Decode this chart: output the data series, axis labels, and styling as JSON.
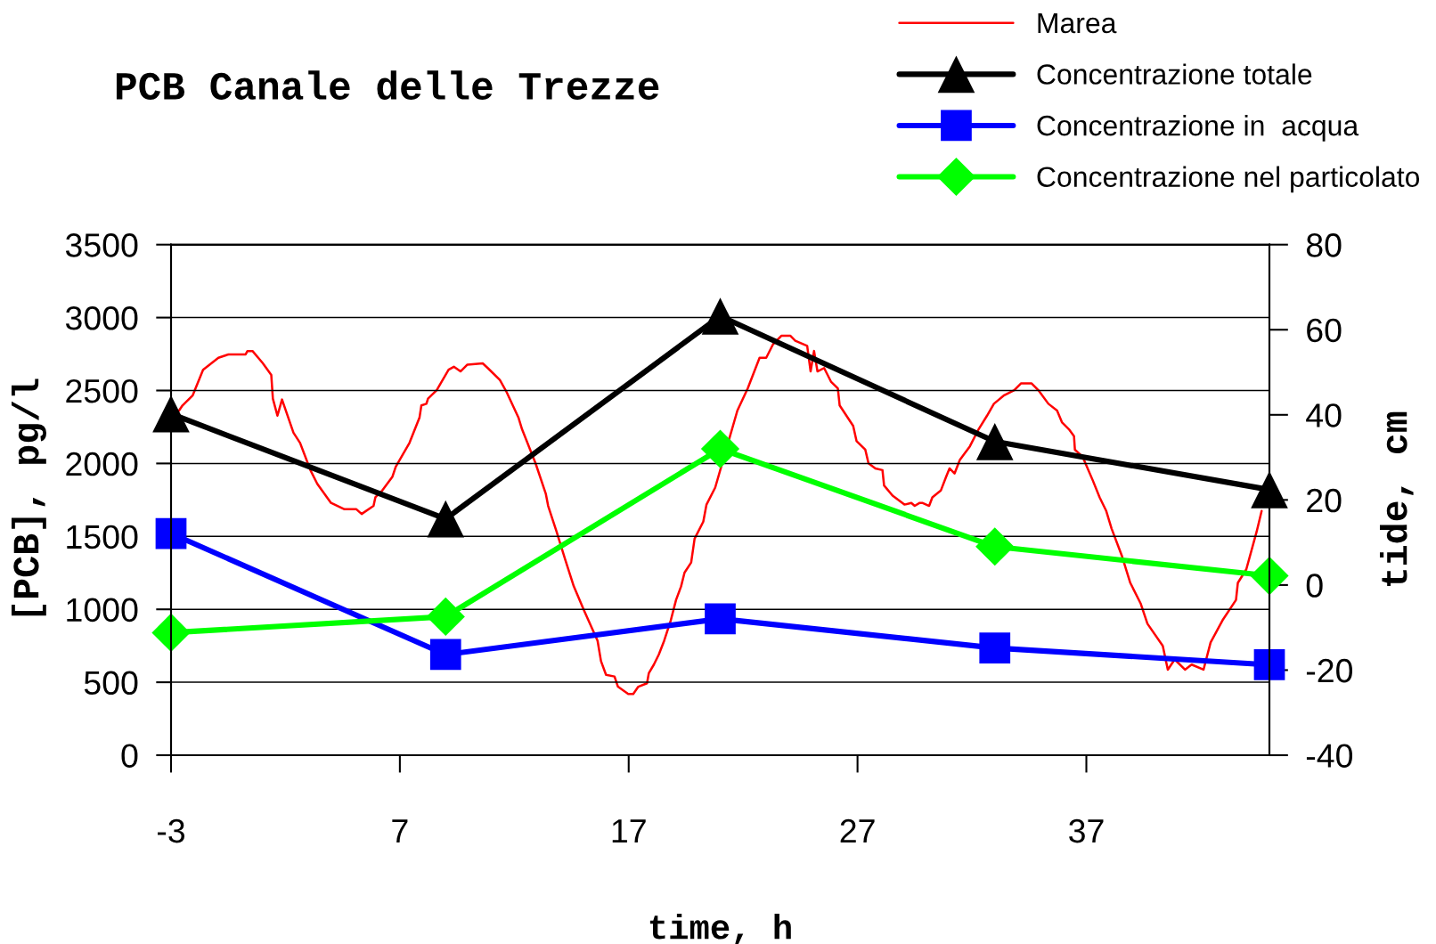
{
  "chart_data": {
    "type": "line",
    "title": "PCB Canale delle Trezze",
    "xlabel": "time, h",
    "ylabel": "[PCB], pg/l",
    "y2label": "tide, cm",
    "x": [
      -3,
      9,
      21,
      33,
      45
    ],
    "xlim": [
      -3,
      45
    ],
    "xticks": [
      -3,
      7,
      17,
      27,
      37
    ],
    "ylim": [
      0,
      3500
    ],
    "yticks": [
      0,
      500,
      1000,
      1500,
      2000,
      2500,
      3000,
      3500
    ],
    "y2lim": [
      -40,
      80
    ],
    "y2ticks": [
      -40,
      -20,
      0,
      20,
      40,
      60,
      80
    ],
    "grid": "y",
    "legend": "top right",
    "series": [
      {
        "name": "Marea",
        "color": "#ff0000",
        "axis": "y2",
        "marker": "none",
        "x": [
          -2.65,
          -2.5,
          -2.05,
          -1.6,
          -0.93,
          -0.49,
          0.26,
          0.34,
          0.56,
          1.0,
          1.38,
          1.45,
          1.65,
          1.85,
          2.35,
          2.64,
          3.09,
          3.39,
          3.99,
          4.58,
          5.1,
          5.33,
          5.85,
          5.93,
          6.23,
          6.67,
          6.82,
          7.42,
          7.86,
          7.94,
          8.16,
          8.23,
          8.61,
          9.13,
          9.36,
          9.65,
          9.95,
          10.62,
          10.84,
          11.37,
          11.66,
          12.18,
          12.34,
          12.93,
          13.38,
          13.48,
          13.85,
          14.22,
          14.6,
          15.04,
          15.64,
          15.79,
          16.01,
          16.38,
          16.53,
          16.98,
          17.2,
          17.42,
          17.8,
          17.88,
          18.1,
          18.32,
          18.55,
          18.84,
          19.07,
          19.29,
          19.44,
          19.73,
          19.88,
          20.26,
          20.4,
          20.78,
          21.75,
          22.2,
          22.49,
          22.72,
          23.01,
          23.31,
          23.68,
          24.06,
          24.28,
          24.8,
          24.95,
          25.1,
          25.25,
          25.54,
          25.84,
          26.14,
          26.22,
          26.81,
          26.96,
          27.34,
          27.48,
          27.78,
          28.09,
          28.16,
          28.53,
          29.05,
          29.35,
          29.5,
          29.72,
          29.83,
          30.13,
          30.27,
          30.64,
          30.87,
          31.02,
          31.24,
          31.47,
          31.91,
          32.29,
          32.66,
          32.96,
          33.41,
          33.85,
          34.15,
          34.6,
          34.9,
          35.34,
          35.72,
          35.94,
          36.24,
          36.46,
          36.5,
          36.83,
          37.28,
          37.58,
          37.87,
          38.1,
          38.55,
          38.92,
          39.37,
          39.67,
          40.34,
          40.56,
          40.86,
          41.31,
          41.6,
          42.12,
          42.43,
          42.95,
          43.54,
          43.62,
          43.99,
          44.44,
          44.66
        ],
        "values": [
          41.0,
          42.2,
          44.6,
          50.6,
          53.4,
          54.2,
          54.2,
          55.0,
          55.0,
          52.2,
          49.4,
          43.8,
          39.8,
          43.6,
          35.8,
          33.4,
          27.0,
          23.8,
          19.3,
          17.8,
          17.8,
          16.7,
          18.6,
          20.6,
          22.2,
          25.4,
          27.8,
          33.4,
          39.4,
          42.2,
          42.6,
          43.8,
          45.8,
          50.6,
          51.3,
          50.2,
          51.8,
          52.1,
          51.0,
          48.2,
          45.4,
          39.4,
          36.6,
          28.6,
          21.4,
          18.6,
          12.5,
          6.1,
          -0.3,
          -5.9,
          -13.1,
          -17.9,
          -21.1,
          -21.5,
          -23.9,
          -25.6,
          -25.6,
          -23.9,
          -23.1,
          -20.7,
          -18.7,
          -16.3,
          -13.1,
          -8.3,
          -3.5,
          -0.3,
          2.9,
          5.3,
          10.9,
          14.9,
          18.9,
          22.9,
          41.0,
          46.2,
          50.2,
          53.4,
          53.4,
          56.6,
          58.6,
          58.6,
          57.4,
          56.2,
          50.2,
          55.0,
          50.2,
          51.0,
          47.8,
          46.2,
          42.2,
          37.4,
          33.8,
          31.8,
          28.6,
          27.4,
          27.0,
          23.4,
          21.0,
          18.9,
          19.3,
          18.6,
          19.3,
          19.3,
          18.6,
          20.6,
          22.2,
          25.4,
          27.4,
          26.2,
          29.4,
          32.6,
          36.6,
          39.8,
          42.6,
          44.6,
          45.8,
          47.4,
          47.4,
          45.8,
          42.6,
          41.0,
          38.2,
          36.6,
          35.0,
          31.8,
          30.2,
          24.6,
          20.6,
          17.4,
          13.3,
          6.9,
          0.5,
          -4.3,
          -9.1,
          -14.3,
          -19.9,
          -17.5,
          -19.9,
          -18.7,
          -19.9,
          -13.5,
          -8.3,
          -3.5,
          0.5,
          3.7,
          12.5,
          17.4
        ]
      },
      {
        "name": "Concentrazione totale",
        "color": "#000000",
        "marker": "triangle",
        "values": [
          2340,
          1620,
          3010,
          2150,
          1820
        ]
      },
      {
        "name": "Concentrazione in  acqua",
        "color": "#0000ff",
        "marker": "square",
        "values": [
          1520,
          690,
          935,
          735,
          620
        ]
      },
      {
        "name": "Concentrazione nel particolato",
        "color": "#00ff00",
        "marker": "diamond",
        "values": [
          840,
          950,
          2100,
          1430,
          1230
        ]
      }
    ]
  }
}
